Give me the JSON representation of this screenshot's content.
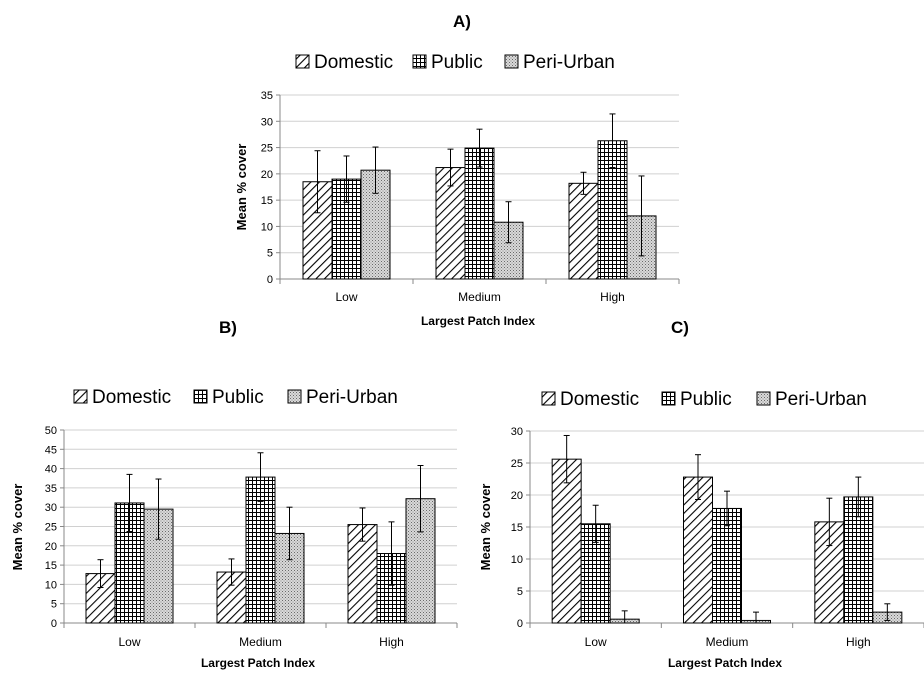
{
  "chart_data": [
    {
      "panel_label": "A)",
      "type": "bar",
      "categories": [
        "Low",
        "Medium",
        "High"
      ],
      "series": [
        {
          "name": "Domestic",
          "values": [
            18.5,
            21.2,
            18.2
          ],
          "error": [
            5.9,
            3.5,
            2.1
          ]
        },
        {
          "name": "Public",
          "values": [
            19.0,
            24.9,
            26.3
          ],
          "error": [
            4.4,
            3.6,
            5.1
          ]
        },
        {
          "name": "Peri-Urban",
          "values": [
            20.7,
            10.8,
            12.0
          ],
          "error": [
            4.4,
            3.9,
            7.6
          ]
        }
      ],
      "xlabel": "Largest Patch Index",
      "ylabel": "Mean % cover",
      "ylim": [
        0,
        35
      ],
      "ytick_step": 5,
      "grid": true,
      "legend": "top"
    },
    {
      "panel_label": "B)",
      "type": "bar",
      "categories": [
        "Low",
        "Medium",
        "High"
      ],
      "series": [
        {
          "name": "Domestic",
          "values": [
            12.8,
            13.2,
            25.5
          ],
          "error": [
            3.6,
            3.4,
            4.3
          ]
        },
        {
          "name": "Public",
          "values": [
            31.1,
            37.8,
            18.0
          ],
          "error": [
            7.4,
            6.3,
            8.2
          ]
        },
        {
          "name": "Peri-Urban",
          "values": [
            29.5,
            23.2,
            32.2
          ],
          "error": [
            7.8,
            6.8,
            8.6
          ]
        }
      ],
      "xlabel": "Largest Patch Index",
      "ylabel": "Mean % cover",
      "ylim": [
        0,
        50
      ],
      "ytick_step": 5,
      "grid": true,
      "legend": "top"
    },
    {
      "panel_label": "C)",
      "type": "bar",
      "categories": [
        "Low",
        "Medium",
        "High"
      ],
      "series": [
        {
          "name": "Domestic",
          "values": [
            25.6,
            22.8,
            15.8
          ],
          "error": [
            3.7,
            3.5,
            3.7
          ]
        },
        {
          "name": "Public",
          "values": [
            15.5,
            17.9,
            19.7
          ],
          "error": [
            2.9,
            2.7,
            3.1
          ]
        },
        {
          "name": "Peri-Urban",
          "values": [
            0.6,
            0.4,
            1.7
          ],
          "error": [
            1.3,
            1.3,
            1.3
          ]
        }
      ],
      "xlabel": "Largest Patch Index",
      "ylabel": "Mean % cover",
      "ylim": [
        0,
        30
      ],
      "ytick_step": 5,
      "grid": true,
      "legend": "top"
    }
  ]
}
